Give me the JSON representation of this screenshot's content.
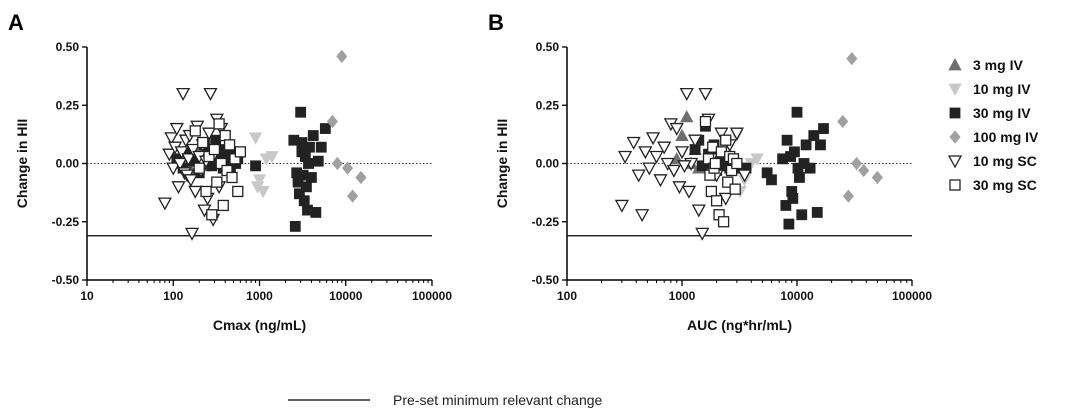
{
  "chart_data": [
    {
      "type": "scatter",
      "panel_label": "A",
      "xlabel": "Cmax (ng/mL)",
      "ylabel": "Change in HII",
      "xscale": "log",
      "xlim": [
        10,
        100000
      ],
      "ylim": [
        -0.5,
        0.5
      ],
      "xticks": [
        "10",
        "100",
        "1000",
        "10000",
        "100000"
      ],
      "yticks": [
        "0.50",
        "0.25",
        "0.00",
        "-0.25",
        "-0.50"
      ],
      "reference_zero": 0.0,
      "min_relevant_change": -0.31,
      "series": [
        {
          "name": "3 mg IV",
          "marker": "triangle-up",
          "color": "#6e6e6e",
          "fill": true,
          "points": [
            [
              120,
              0.0
            ],
            [
              140,
              0.02
            ],
            [
              160,
              -0.03
            ],
            [
              200,
              0.05
            ],
            [
              230,
              -0.01
            ],
            [
              260,
              0.04
            ]
          ]
        },
        {
          "name": "10 mg IV",
          "marker": "triangle-down",
          "color": "#c8c8c8",
          "fill": true,
          "points": [
            [
              900,
              0.11
            ],
            [
              950,
              -0.1
            ],
            [
              1000,
              -0.07
            ],
            [
              1100,
              -0.12
            ],
            [
              1200,
              0.02
            ],
            [
              1400,
              0.03
            ]
          ]
        },
        {
          "name": "30 mg IV",
          "marker": "square",
          "color": "#222222",
          "fill": true,
          "points": [
            [
              110,
              0.02
            ],
            [
              130,
              -0.02
            ],
            [
              150,
              0.05
            ],
            [
              170,
              0.01
            ],
            [
              200,
              -0.04
            ],
            [
              230,
              0.08
            ],
            [
              260,
              0.04
            ],
            [
              280,
              -0.01
            ],
            [
              310,
              0.1
            ],
            [
              330,
              0.03
            ],
            [
              360,
              0.06
            ],
            [
              380,
              -0.02
            ],
            [
              400,
              0.04
            ],
            [
              430,
              0.01
            ],
            [
              460,
              -0.03
            ],
            [
              500,
              0.05
            ],
            [
              530,
              0.0
            ],
            [
              560,
              0.02
            ],
            [
              900,
              -0.01
            ],
            [
              2500,
              0.1
            ],
            [
              2700,
              -0.04
            ],
            [
              2900,
              -0.13
            ],
            [
              3000,
              0.22
            ],
            [
              3100,
              0.05
            ],
            [
              3200,
              -0.05
            ],
            [
              3300,
              -0.16
            ],
            [
              3400,
              0.03
            ],
            [
              3500,
              -0.1
            ],
            [
              3600,
              -0.2
            ],
            [
              3700,
              0.0
            ],
            [
              3800,
              0.07
            ],
            [
              4000,
              -0.06
            ],
            [
              4200,
              0.12
            ],
            [
              4500,
              -0.21
            ],
            [
              4800,
              0.01
            ],
            [
              5200,
              0.07
            ],
            [
              5800,
              0.15
            ],
            [
              2600,
              -0.27
            ],
            [
              2800,
              -0.08
            ],
            [
              3100,
              0.09
            ]
          ]
        },
        {
          "name": "100 mg IV",
          "marker": "diamond",
          "color": "#a0a0a0",
          "fill": true,
          "points": [
            [
              7000,
              0.18
            ],
            [
              8000,
              0.0
            ],
            [
              9000,
              0.46
            ],
            [
              10500,
              -0.02
            ],
            [
              12000,
              -0.14
            ],
            [
              15000,
              -0.06
            ]
          ]
        },
        {
          "name": "10 mg SC",
          "marker": "triangle-down",
          "color": "#222222",
          "fill": false,
          "points": [
            [
              80,
              -0.17
            ],
            [
              90,
              0.04
            ],
            [
              95,
              0.11
            ],
            [
              100,
              -0.02
            ],
            [
              105,
              0.07
            ],
            [
              110,
              0.15
            ],
            [
              115,
              -0.1
            ],
            [
              120,
              0.0
            ],
            [
              125,
              0.05
            ],
            [
              130,
              0.3
            ],
            [
              135,
              -0.04
            ],
            [
              140,
              0.1
            ],
            [
              145,
              -0.05
            ],
            [
              150,
              0.02
            ],
            [
              155,
              0.12
            ],
            [
              160,
              -0.07
            ],
            [
              165,
              -0.3
            ],
            [
              170,
              0.06
            ],
            [
              180,
              -0.12
            ],
            [
              190,
              0.16
            ],
            [
              200,
              0.03
            ],
            [
              210,
              -0.03
            ],
            [
              220,
              0.08
            ],
            [
              230,
              -0.2
            ],
            [
              240,
              0.01
            ],
            [
              250,
              -0.15
            ],
            [
              260,
              0.13
            ],
            [
              270,
              0.3
            ],
            [
              290,
              -0.24
            ],
            [
              300,
              0.04
            ],
            [
              320,
              0.19
            ],
            [
              340,
              -0.1
            ],
            [
              360,
              0.15
            ]
          ]
        },
        {
          "name": "30 mg SC",
          "marker": "square",
          "color": "#222222",
          "fill": false,
          "points": [
            [
              180,
              0.14
            ],
            [
              200,
              -0.02
            ],
            [
              220,
              0.09
            ],
            [
              240,
              -0.12
            ],
            [
              260,
              0.03
            ],
            [
              280,
              -0.22
            ],
            [
              300,
              0.06
            ],
            [
              320,
              -0.08
            ],
            [
              340,
              0.17
            ],
            [
              360,
              0.0
            ],
            [
              380,
              -0.18
            ],
            [
              400,
              0.12
            ],
            [
              420,
              -0.03
            ],
            [
              450,
              0.08
            ],
            [
              480,
              -0.06
            ],
            [
              520,
              0.02
            ],
            [
              560,
              -0.12
            ],
            [
              600,
              0.05
            ]
          ]
        }
      ]
    },
    {
      "type": "scatter",
      "panel_label": "B",
      "xlabel": "AUC (ng*hr/mL)",
      "ylabel": "Change in HII",
      "xscale": "log",
      "xlim": [
        100,
        100000
      ],
      "ylim": [
        -0.5,
        0.5
      ],
      "xticks": [
        "100",
        "1000",
        "10000",
        "100000"
      ],
      "yticks": [
        "0.50",
        "0.25",
        "0.00",
        "-0.25",
        "-0.50"
      ],
      "reference_zero": 0.0,
      "min_relevant_change": -0.31,
      "series": [
        {
          "name": "3 mg IV",
          "marker": "triangle-up",
          "color": "#6e6e6e",
          "fill": true,
          "points": [
            [
              900,
              0.02
            ],
            [
              1000,
              0.12
            ],
            [
              1100,
              0.2
            ],
            [
              1200,
              0.0
            ],
            [
              1300,
              0.06
            ],
            [
              1400,
              -0.02
            ]
          ]
        },
        {
          "name": "10 mg IV",
          "marker": "triangle-down",
          "color": "#c8c8c8",
          "fill": true,
          "points": [
            [
              2500,
              0.0
            ],
            [
              3000,
              0.12
            ],
            [
              3200,
              -0.12
            ],
            [
              3500,
              -0.07
            ],
            [
              4000,
              0.0
            ],
            [
              4500,
              0.02
            ]
          ]
        },
        {
          "name": "30 mg IV",
          "marker": "square",
          "color": "#222222",
          "fill": true,
          "points": [
            [
              1300,
              0.06
            ],
            [
              1400,
              0.1
            ],
            [
              1500,
              -0.01
            ],
            [
              1600,
              0.16
            ],
            [
              1700,
              0.04
            ],
            [
              1800,
              0.0
            ],
            [
              1900,
              0.08
            ],
            [
              2000,
              -0.03
            ],
            [
              2100,
              0.03
            ],
            [
              2200,
              0.0
            ],
            [
              2300,
              -0.01
            ],
            [
              2400,
              0.02
            ],
            [
              2600,
              -0.02
            ],
            [
              2800,
              -0.02
            ],
            [
              3000,
              -0.02
            ],
            [
              3300,
              -0.02
            ],
            [
              3600,
              -0.02
            ],
            [
              5500,
              -0.04
            ],
            [
              6000,
              -0.07
            ],
            [
              7500,
              0.02
            ],
            [
              8000,
              -0.18
            ],
            [
              8200,
              0.1
            ],
            [
              8500,
              -0.26
            ],
            [
              9000,
              -0.12
            ],
            [
              9500,
              0.05
            ],
            [
              10000,
              0.22
            ],
            [
              10500,
              -0.06
            ],
            [
              11000,
              -0.22
            ],
            [
              11500,
              0.0
            ],
            [
              12000,
              0.08
            ],
            [
              13000,
              -0.02
            ],
            [
              14000,
              0.12
            ],
            [
              15000,
              -0.21
            ],
            [
              16000,
              0.08
            ],
            [
              17000,
              0.15
            ],
            [
              9200,
              -0.15
            ],
            [
              8800,
              0.03
            ],
            [
              10200,
              -0.02
            ]
          ]
        },
        {
          "name": "100 mg IV",
          "marker": "diamond",
          "color": "#a0a0a0",
          "fill": true,
          "points": [
            [
              25000,
              0.18
            ],
            [
              28000,
              -0.14
            ],
            [
              30000,
              0.45
            ],
            [
              33000,
              0.0
            ],
            [
              38000,
              -0.03
            ],
            [
              50000,
              -0.06
            ]
          ]
        },
        {
          "name": "10 mg SC",
          "marker": "triangle-down",
          "color": "#222222",
          "fill": false,
          "points": [
            [
              300,
              -0.18
            ],
            [
              320,
              0.03
            ],
            [
              380,
              0.09
            ],
            [
              420,
              -0.05
            ],
            [
              450,
              -0.22
            ],
            [
              480,
              0.05
            ],
            [
              520,
              -0.02
            ],
            [
              560,
              0.11
            ],
            [
              600,
              0.03
            ],
            [
              650,
              -0.07
            ],
            [
              700,
              0.07
            ],
            [
              750,
              0.0
            ],
            [
              800,
              0.17
            ],
            [
              850,
              -0.03
            ],
            [
              900,
              0.15
            ],
            [
              950,
              -0.1
            ],
            [
              1000,
              0.05
            ],
            [
              1100,
              0.3
            ],
            [
              1150,
              -0.12
            ],
            [
              1200,
              0.0
            ],
            [
              1300,
              0.1
            ],
            [
              1400,
              -0.2
            ],
            [
              1500,
              -0.3
            ],
            [
              1600,
              0.3
            ],
            [
              1700,
              0.19
            ],
            [
              1800,
              0.02
            ],
            [
              2000,
              -0.05
            ],
            [
              2200,
              0.13
            ],
            [
              2400,
              -0.15
            ],
            [
              2600,
              0.08
            ],
            [
              3000,
              0.13
            ],
            [
              3500,
              -0.05
            ],
            [
              1050,
              -0.01
            ]
          ]
        },
        {
          "name": "30 mg SC",
          "marker": "square",
          "color": "#222222",
          "fill": false,
          "points": [
            [
              1600,
              0.18
            ],
            [
              1700,
              0.02
            ],
            [
              1750,
              -0.05
            ],
            [
              1800,
              -0.12
            ],
            [
              1850,
              0.07
            ],
            [
              1900,
              -0.02
            ],
            [
              1950,
              0.0
            ],
            [
              2000,
              -0.16
            ],
            [
              2100,
              -0.22
            ],
            [
              2200,
              0.05
            ],
            [
              2300,
              -0.25
            ],
            [
              2400,
              0.1
            ],
            [
              2500,
              -0.08
            ],
            [
              2600,
              0.03
            ],
            [
              2700,
              -0.03
            ],
            [
              2800,
              0.02
            ],
            [
              2900,
              -0.11
            ],
            [
              3000,
              0.0
            ]
          ]
        }
      ]
    }
  ],
  "legend": {
    "entries": [
      {
        "label": "3 mg IV",
        "marker": "triangle-up",
        "color": "#6e6e6e",
        "fill": true
      },
      {
        "label": "10 mg IV",
        "marker": "triangle-down",
        "color": "#c8c8c8",
        "fill": true
      },
      {
        "label": "30 mg IV",
        "marker": "square",
        "color": "#222222",
        "fill": true
      },
      {
        "label": "100 mg IV",
        "marker": "diamond",
        "color": "#a0a0a0",
        "fill": true
      },
      {
        "label": "10 mg SC",
        "marker": "triangle-down",
        "color": "#222222",
        "fill": false
      },
      {
        "label": "30 mg SC",
        "marker": "square",
        "color": "#222222",
        "fill": false
      }
    ],
    "placement": "right"
  },
  "footnote": {
    "line_label": "Pre-set minimum relevant change"
  }
}
